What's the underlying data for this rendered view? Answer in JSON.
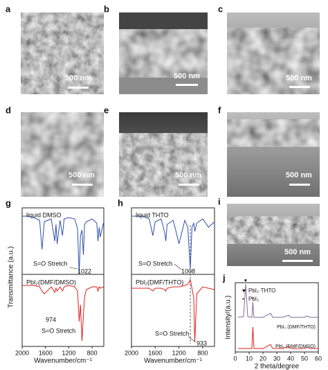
{
  "panels": [
    {
      "label": "a",
      "scale_bar": "500 nm"
    },
    {
      "label": "b",
      "scale_bar": "500 nm"
    },
    {
      "label": "c",
      "scale_bar": "500 nm"
    },
    {
      "label": "d",
      "scale_bar": "500 nm"
    },
    {
      "label": "e",
      "scale_bar": "500 nm"
    },
    {
      "label": "f",
      "scale_bar": "500 nm"
    },
    {
      "label": "i",
      "scale_bar": "500 nm"
    }
  ],
  "chart_data": [
    {
      "type": "line",
      "label": "g",
      "y_label": "Transmittance (a.u.)",
      "x_label": "Wavenumber/cm⁻¹",
      "xlim": [
        2000,
        600
      ],
      "xticks": [
        2000,
        1600,
        1200,
        800
      ],
      "ylim": [
        0,
        10
      ],
      "x": [
        2000,
        1900,
        1800,
        1700,
        1660,
        1620,
        1500,
        1440,
        1420,
        1400,
        1350,
        1310,
        1280,
        1200,
        1100,
        1050,
        1022,
        1000,
        974,
        950,
        930,
        900,
        800,
        720,
        700,
        680,
        660,
        600
      ],
      "series": [
        {
          "name": "liquid DMSO",
          "color": "#2b4fa8",
          "values": [
            9.4,
            9.4,
            9.3,
            9.1,
            7.0,
            9.0,
            9.2,
            7.6,
            8.8,
            7.4,
            9.1,
            8.0,
            9.2,
            9.3,
            9.2,
            8.5,
            5.2,
            8.0,
            8.4,
            6.6,
            8.8,
            9.0,
            9.2,
            8.9,
            7.6,
            8.6,
            7.9,
            9.0
          ]
        },
        {
          "name": "PbI₂(DMF/DMSO)",
          "color": "#e0201b",
          "values": [
            4.4,
            4.4,
            4.4,
            4.3,
            4.0,
            3.8,
            4.3,
            3.9,
            4.2,
            4.0,
            4.3,
            4.0,
            4.3,
            4.4,
            4.3,
            4.0,
            1.8,
            3.0,
            0.4,
            2.2,
            3.6,
            4.1,
            4.3,
            4.3,
            4.0,
            4.3,
            4.2,
            4.3
          ]
        }
      ],
      "annotations": [
        "S=O Stretch",
        "1022",
        "974",
        "S=O Stretch"
      ]
    },
    {
      "type": "line",
      "label": "h",
      "x_label": "Wavenumber/cm⁻¹",
      "xlim": [
        2000,
        600
      ],
      "xticks": [
        2000,
        1600,
        1200,
        800
      ],
      "ylim": [
        0,
        10
      ],
      "x": [
        2000,
        1900,
        1800,
        1700,
        1640,
        1600,
        1500,
        1440,
        1420,
        1400,
        1300,
        1260,
        1200,
        1100,
        1050,
        1008,
        980,
        950,
        933,
        900,
        800,
        700,
        600
      ],
      "series": [
        {
          "name": "liquid THTO",
          "color": "#2b4fa8",
          "values": [
            9.4,
            9.4,
            9.4,
            9.2,
            8.0,
            9.0,
            9.2,
            8.2,
            7.6,
            8.8,
            9.1,
            8.5,
            7.4,
            9.1,
            8.6,
            5.6,
            8.6,
            8.9,
            8.3,
            8.9,
            9.2,
            8.6,
            9.0
          ]
        },
        {
          "name": "PbI₂(DMF/THTO)",
          "color": "#e0201b",
          "values": [
            4.2,
            4.2,
            4.2,
            4.2,
            4.0,
            4.2,
            4.2,
            4.1,
            4.0,
            4.2,
            4.3,
            4.3,
            4.3,
            4.4,
            4.5,
            4.8,
            4.2,
            3.5,
            0.3,
            3.8,
            4.3,
            4.2,
            4.1
          ]
        }
      ],
      "annotations": [
        "S=O Stretch",
        "1008",
        "S=O Stretch",
        "933"
      ]
    },
    {
      "type": "line",
      "label": "j",
      "y_label": "Intensity/(a.u.)",
      "x_label": "2 theta/degree",
      "xlim": [
        0,
        60
      ],
      "xticks": [
        0,
        10,
        20,
        30,
        40,
        50,
        60
      ],
      "ylim": [
        0,
        10
      ],
      "x": [
        2,
        6,
        7.5,
        9,
        12,
        12.7,
        13.5,
        20,
        25.5,
        27,
        34,
        38.6,
        40,
        50,
        52,
        54,
        60
      ],
      "series": [
        {
          "name": "PbI₂ (DMF/THTO)",
          "color": "#7b6a96",
          "values": [
            5.0,
            5.1,
            9.8,
            5.1,
            5.0,
            7.2,
            5.0,
            5.0,
            5.6,
            5.0,
            5.0,
            5.3,
            5.0,
            5.0,
            5.2,
            5.0,
            5.0
          ]
        },
        {
          "name": "PbI₂ (DMF/DMSO)",
          "color": "#e0201b",
          "values": [
            0.5,
            0.5,
            0.5,
            0.5,
            0.5,
            3.6,
            0.5,
            0.5,
            1.1,
            0.5,
            0.5,
            0.8,
            0.5,
            0.5,
            0.7,
            0.5,
            0.5
          ]
        }
      ],
      "peak_markers": [
        {
          "symbol": "♥",
          "name": "PbI₂·THTO",
          "x": [
            7.5
          ]
        },
        {
          "symbol": "•",
          "name": "PbI₂",
          "x": [
            12.7
          ]
        }
      ]
    }
  ]
}
